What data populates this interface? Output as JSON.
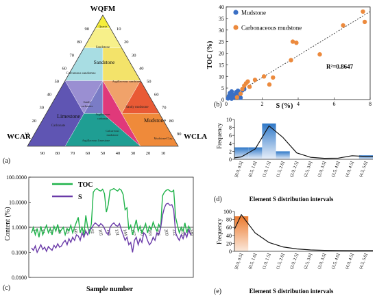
{
  "chart_data": [
    {
      "panel": "(a)",
      "type": "ternary",
      "vertices": {
        "top": "WQFM",
        "left": "WCAR",
        "right": "WCLA"
      },
      "ticks": [
        "10",
        "20",
        "30",
        "40",
        "50",
        "60",
        "70",
        "80",
        "90"
      ],
      "regions": [
        {
          "name": "Quartz",
          "color": "#f6ee3a"
        },
        {
          "name": "Sandstone",
          "color": "#f7f08a"
        },
        {
          "name": "Calcareous sandstone",
          "color": "#a8dde3"
        },
        {
          "name": "Argillaceous sandstone",
          "color": "#f3e36a"
        },
        {
          "name": "Sandy carbonate",
          "color": "#9a8fd2"
        },
        {
          "name": "Argillaceous carbonate",
          "color": "#7a7cc6"
        },
        {
          "name": "Sandy mudstone",
          "color": "#f0a26a"
        },
        {
          "name": "Carbonate",
          "color": "#5f55b3"
        },
        {
          "name": "Limestone",
          "color": "#6b5bb9"
        },
        {
          "name": "Calcareous mudstone",
          "color": "#e0397a"
        },
        {
          "name": "Mudstone",
          "color": "#e95a35"
        },
        {
          "name": "Argillaceous limestone",
          "color": "#1f9e93"
        },
        {
          "name": "Mudstone/Clay",
          "color": "#ef8a3a"
        }
      ],
      "region_titles": [
        "Sandstone",
        "Limestone",
        "Mudstone"
      ]
    },
    {
      "panel": "(b)",
      "type": "scatter",
      "xlabel": "S (%)",
      "ylabel": "TOC (%)",
      "xlim": [
        0,
        8
      ],
      "ylim": [
        0,
        40
      ],
      "xticks": [
        0,
        2,
        4,
        6,
        8
      ],
      "yticks": [
        0,
        5,
        10,
        15,
        20,
        25,
        30,
        35,
        40
      ],
      "r2_label": "R²=0.8647",
      "trendline": {
        "x": [
          0,
          8
        ],
        "y": [
          0,
          38
        ]
      },
      "series": [
        {
          "name": "Mudstone",
          "color": "#3a6fc4",
          "x": [
            0.1,
            0.15,
            0.2,
            0.25,
            0.3,
            0.35,
            0.4,
            0.5,
            0.55,
            0.6,
            0.7,
            0.8,
            0.3,
            0.45,
            0.2,
            0.65,
            1.0,
            0.9
          ],
          "y": [
            0.5,
            1.5,
            2.8,
            1.2,
            3.5,
            2.2,
            0.9,
            2.0,
            3.2,
            1.6,
            2.5,
            0.8,
            0.4,
            1.0,
            2.0,
            3.8,
            4.5,
            4.0
          ]
        },
        {
          "name": "Carbonaceous mudstone",
          "color": "#ec8a3d",
          "x": [
            0.6,
            0.9,
            1.1,
            1.2,
            1.3,
            1.6,
            2.1,
            2.6,
            3.6,
            3.7,
            3.9,
            5.2,
            6.5,
            7.6,
            7.7,
            1.0,
            0.8,
            2.4
          ],
          "y": [
            1.0,
            4.5,
            7.0,
            7.8,
            5.5,
            8.5,
            10.0,
            9.5,
            17.0,
            25.0,
            24.5,
            19.5,
            32.0,
            38.0,
            33.5,
            6.0,
            2.5,
            6.5
          ]
        }
      ]
    },
    {
      "panel": "(c)",
      "type": "line",
      "xlabel": "Sample number",
      "ylabel": "Content (%)",
      "yscale": "log",
      "yticklabels": [
        "100.0000",
        "10.0000",
        "1.0000",
        "0.1000",
        "0.0100"
      ],
      "ytickvalues": [
        100,
        10,
        1,
        0.1,
        0.01
      ],
      "xticklabels": [
        "1",
        "14",
        "27",
        "40",
        "53",
        "66",
        "79",
        "92",
        "105",
        "118",
        "131",
        "144",
        "157",
        "170",
        "183",
        "196",
        "209",
        "222",
        "235",
        "248"
      ],
      "series": [
        {
          "name": "TOC",
          "color": "#1fb34a",
          "values": [
            0.6,
            1.0,
            0.5,
            0.9,
            0.4,
            1.1,
            0.5,
            0.8,
            1.2,
            0.6,
            0.9,
            0.5,
            1.1,
            0.7,
            1.3,
            0.6,
            0.8,
            1.0,
            0.5,
            0.9,
            0.7,
            1.2,
            0.6,
            1.0,
            1.6,
            2.5,
            0.6,
            1.0,
            0.5,
            3.0,
            1.0,
            0.6,
            1.4,
            25,
            32,
            35,
            30,
            28,
            33,
            22,
            4,
            8,
            30,
            32,
            35,
            31,
            28,
            34,
            30,
            20,
            5,
            6,
            0.8,
            1.2,
            0.5,
            1.0,
            2.0,
            0.7,
            1.1,
            0.6,
            0.9,
            1.4,
            0.6,
            1.1,
            0.8,
            1.6,
            1.0,
            0.7,
            1.3,
            0.9,
            18,
            25,
            30,
            32,
            28,
            26,
            30,
            2.5,
            1.2,
            0.6,
            1.0,
            0.7,
            1.5,
            0.6,
            1.1,
            0.8
          ]
        },
        {
          "name": "S",
          "color": "#6a3aa8",
          "values": [
            0.15,
            0.12,
            0.18,
            0.1,
            0.14,
            0.2,
            0.13,
            0.16,
            0.11,
            0.17,
            0.14,
            0.12,
            0.19,
            0.15,
            0.22,
            0.16,
            0.18,
            0.25,
            0.3,
            0.2,
            0.35,
            0.25,
            0.4,
            0.3,
            0.5,
            0.45,
            0.3,
            0.6,
            0.4,
            0.7,
            0.5,
            0.8,
            0.9,
            1.2,
            1.5,
            1.3,
            1.1,
            1.4,
            1.2,
            0.9,
            0.6,
            0.5,
            1.0,
            1.3,
            1.5,
            1.2,
            1.1,
            1.4,
            0.8,
            0.5,
            0.3,
            0.4,
            0.2,
            0.25,
            0.1,
            0.3,
            0.4,
            0.2,
            0.35,
            0.25,
            0.6,
            0.5,
            0.3,
            0.2,
            0.25,
            0.4,
            0.3,
            0.6,
            0.5,
            0.9,
            3.0,
            6.0,
            8.5,
            9.0,
            7.5,
            8.0,
            5.0,
            0.6,
            0.4,
            0.3,
            0.5,
            0.35,
            0.6,
            0.4,
            0.8,
            0.5
          ]
        }
      ]
    },
    {
      "panel": "(d)",
      "type": "bar",
      "title": "Element S distribution intervals",
      "ylabel": "Frequency",
      "ylim": [
        0,
        10
      ],
      "yticks": [
        0,
        2,
        4,
        6,
        8,
        10
      ],
      "categories": [
        "[0.0, 0.5]",
        "(0.5, 1.0]",
        "(1.0, 1.5]",
        "(1.5, 2.0]",
        "(2.0, 2.5]",
        "(2.5, 3.0]",
        "(3.0, 3.5]",
        "(3.5, 4.0]",
        "(4.0, 4.5]",
        "(4.5, 5.0]"
      ],
      "values": [
        3,
        3,
        9,
        2,
        0,
        0,
        0,
        0,
        0,
        1
      ],
      "bar_color": "#2f78c8",
      "curve": [
        0.6,
        2.6,
        8.4,
        5.5,
        1.6,
        0.5,
        0.25,
        0.3,
        0.9,
        0.7
      ]
    },
    {
      "panel": "(e)",
      "type": "bar",
      "title": "Element S distribution intervals",
      "ylabel": "Frequency",
      "ylim": [
        0,
        100
      ],
      "yticks": [
        0,
        20,
        40,
        60,
        80,
        100
      ],
      "categories": [
        "[0.0, 0.5]",
        "(0.5, 1.0]",
        "(1.0, 1.5]",
        "(1.5, 2.0]",
        "(2.0, 2.5]",
        "(2.5, 3.0]",
        "(3.0, 3.5]",
        "(3.5, 4.0]",
        "(4.0, 4.5]",
        "(4.5, 5.0]"
      ],
      "values": [
        88,
        0,
        0,
        0,
        0,
        0,
        0,
        0,
        0,
        0
      ],
      "bar_color": "#ec7a2e",
      "curve": [
        92,
        46,
        22,
        11,
        6,
        3.5,
        2.5,
        2,
        1.8,
        1.7
      ]
    }
  ]
}
